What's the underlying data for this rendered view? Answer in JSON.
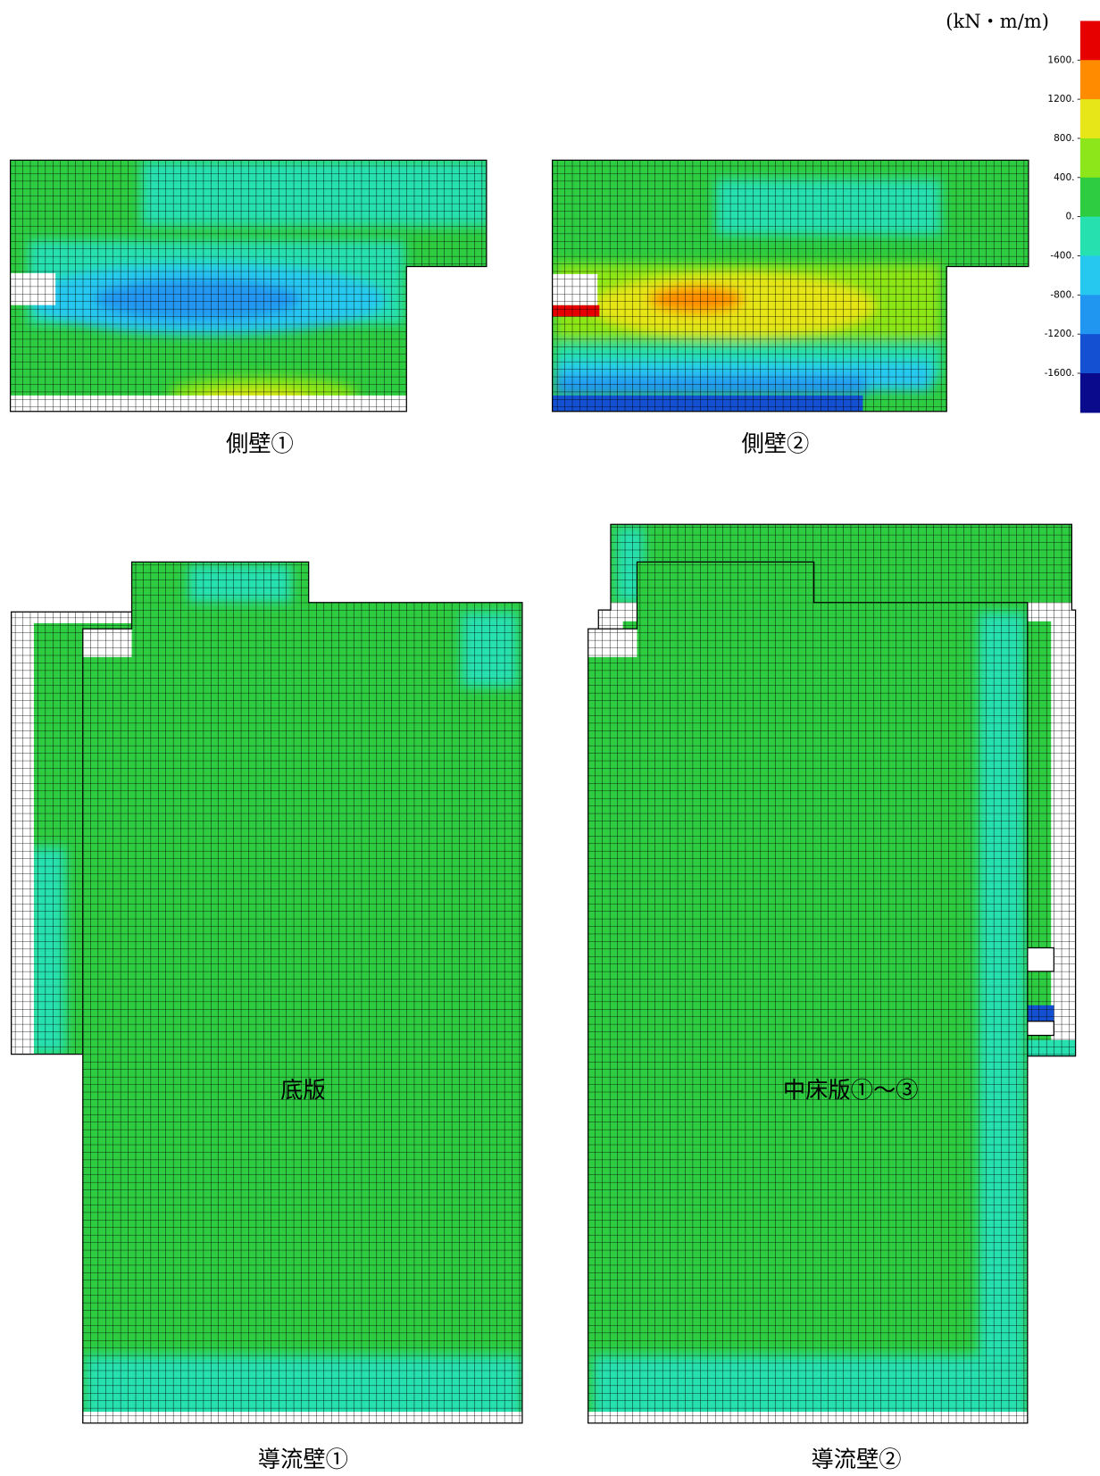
{
  "legend": {
    "unit": "(kN・m/m)",
    "ticks": [
      {
        "value": 1600,
        "label": "1600."
      },
      {
        "value": 1200,
        "label": "1200."
      },
      {
        "value": 800,
        "label": "800."
      },
      {
        "value": 400,
        "label": "400."
      },
      {
        "value": 0,
        "label": "0."
      },
      {
        "value": -400,
        "label": "-400."
      },
      {
        "value": -800,
        "label": "-800."
      },
      {
        "value": -1200,
        "label": "-1200."
      },
      {
        "value": -1600,
        "label": "-1600."
      }
    ],
    "colors": [
      "#e60000",
      "#ff8c00",
      "#e6e619",
      "#8ce619",
      "#2ecc40",
      "#26e0b0",
      "#26c8f0",
      "#2196f0",
      "#1450d2",
      "#0a0a8c"
    ]
  },
  "panels": [
    {
      "caption": "側壁①"
    },
    {
      "caption": "側壁②"
    },
    {
      "caption": "底版"
    },
    {
      "caption": "中床版①～③"
    },
    {
      "caption": "導流壁①"
    },
    {
      "caption": "導流壁②"
    }
  ]
}
